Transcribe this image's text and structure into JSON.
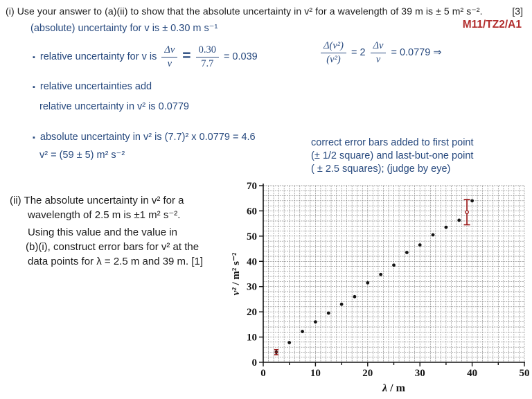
{
  "colors": {
    "blue": "#27497E",
    "red": "#B22E2E",
    "error_bar": "#9A1A1A",
    "grid": "#7E7E7E",
    "axis": "#141414",
    "point": "#141414"
  },
  "question_i": {
    "text": "(i) Use your answer to (a)(ii) to show that the absolute uncertainty in v²  for a wavelength of 39 m is ± 5 m² s⁻².",
    "marks": "[3]"
  },
  "ref_code": "M11/TZ2/A1",
  "markscheme": {
    "bullet_glyph": "▪",
    "line_abs_v": "(absolute) uncertainty for v is  ± 0.30 m s⁻¹",
    "bullet1": {
      "label": "relative uncertainty for v is",
      "frac1_num": "Δv",
      "frac1_den": "v",
      "equals": "=",
      "frac2_num": "0.30",
      "frac2_den": "7.7",
      "result": "= 0.039"
    },
    "side_formula": {
      "frac1_num": "Δ(v²)",
      "frac1_den": "(v²)",
      "mid": "= 2",
      "frac2_num": "Δv",
      "frac2_den": "v",
      "result": "= 0.0779 ⇒"
    },
    "bullet2": "relative  uncertainties add",
    "bullet2_sub": "relative uncertainty  in v² is 0.0779",
    "bullet3": "absolute uncertainty in v² is (7.7)² x 0.0779 = 4.6",
    "bullet3_sub": "v² = (59 ± 5) m² s⁻²",
    "note_lines": [
      "correct error bars added to first point",
      "(± 1/2 square) and last-but-one point",
      "( ± 2.5 squares); (judge by eye)"
    ]
  },
  "question_ii": {
    "lines": [
      "(ii) The absolute uncertainty in v²  for a",
      "wavelength of 2.5 m is ±1 m² s⁻².",
      "Using this value and the value in",
      "(b)(i), construct error bars for v² at the",
      "data points for λ = 2.5 m and 39 m.  [1]"
    ]
  },
  "chart_data": {
    "type": "scatter",
    "xlabel": "λ / m",
    "ylabel": "v² / m² s⁻²",
    "xlim": [
      0,
      50
    ],
    "ylim": [
      0,
      70
    ],
    "x_major_ticks": [
      0,
      10,
      20,
      30,
      40,
      50
    ],
    "x_tick_step": 5,
    "y_major_ticks": [
      0,
      10,
      20,
      30,
      40,
      50,
      60,
      70
    ],
    "grid": {
      "x_step": 1,
      "y_step": 2,
      "style": "dashed"
    },
    "legend": "none",
    "points": [
      [
        2.5,
        4
      ],
      [
        5,
        7.8
      ],
      [
        7.5,
        12.2
      ],
      [
        10,
        16
      ],
      [
        12.5,
        19.5
      ],
      [
        15,
        23
      ],
      [
        17.5,
        26
      ],
      [
        20,
        31.5
      ],
      [
        22.5,
        34.8
      ],
      [
        25,
        38.5
      ],
      [
        27.5,
        43.5
      ],
      [
        30,
        46.5
      ],
      [
        32.5,
        50.5
      ],
      [
        35,
        53.5
      ],
      [
        37.5,
        56.3
      ],
      [
        40,
        64
      ]
    ],
    "error_bars": [
      {
        "x": 2.5,
        "y": 4,
        "plus_minus": 1,
        "marker": "dash"
      },
      {
        "x": 39,
        "y": 59.5,
        "plus_minus": 5,
        "marker": "open-circle"
      }
    ]
  }
}
